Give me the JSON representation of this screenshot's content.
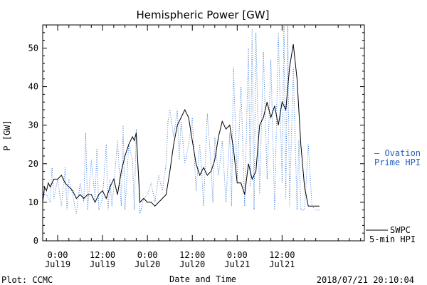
{
  "chart_data": {
    "type": "line",
    "title": "Hemispheric Power [GW]",
    "xlabel": "Date and Time",
    "ylabel": "P [GW]",
    "ylim": [
      0,
      56
    ],
    "xlim_hours": [
      -4,
      82
    ],
    "yticks": [
      0,
      10,
      20,
      30,
      40,
      50
    ],
    "xticks": [
      {
        "hour": 0,
        "time": "0:00",
        "date": "Jul19"
      },
      {
        "hour": 12,
        "time": "12:00",
        "date": "Jul19"
      },
      {
        "hour": 24,
        "time": "0:00",
        "date": "Jul20"
      },
      {
        "hour": 36,
        "time": "12:00",
        "date": "Jul20"
      },
      {
        "hour": 48,
        "time": "0:00",
        "date": "Jul21"
      },
      {
        "hour": 60,
        "time": "12:00",
        "date": "Jul21"
      }
    ],
    "series": [
      {
        "name": "SWPC 5-min HPI",
        "color": "#000000",
        "style": "solid",
        "x": [
          -4,
          -3.5,
          -3,
          -2.5,
          -2,
          -1,
          0,
          1,
          2,
          3,
          4,
          5,
          6,
          7,
          8,
          9,
          10,
          11,
          12,
          13,
          14,
          15,
          16,
          17,
          18,
          19,
          20,
          20.5,
          21,
          22,
          23,
          24,
          25,
          26,
          27,
          28,
          29,
          30,
          31,
          32,
          33,
          34,
          35,
          36,
          37,
          38,
          39,
          40,
          41,
          42,
          43,
          44,
          45,
          46,
          47,
          48,
          49,
          50,
          51,
          52,
          53,
          54,
          55,
          56,
          57,
          58,
          59,
          60,
          61,
          62,
          63,
          64,
          65,
          66,
          67,
          68,
          69,
          70
        ],
        "y": [
          10,
          14,
          13,
          15,
          14,
          16,
          16,
          17,
          15,
          14,
          13,
          11,
          12,
          11,
          12,
          12,
          10,
          12,
          13,
          11,
          14,
          16,
          12,
          18,
          22,
          25,
          27,
          26,
          28,
          10,
          11,
          10,
          10,
          9,
          10,
          11,
          12,
          18,
          25,
          30,
          32,
          34,
          32,
          26,
          20,
          17,
          19,
          17,
          18,
          21,
          27,
          31,
          29,
          30,
          24,
          15,
          15,
          12,
          20,
          16,
          18,
          30,
          32,
          36,
          32,
          35,
          30,
          36,
          34,
          45,
          51,
          42,
          25,
          14,
          9,
          9,
          9,
          9
        ]
      },
      {
        "name": "Ovation Prime HPI",
        "color": "#3b78d4",
        "style": "dotted",
        "x": [
          -4,
          -3,
          -2,
          -1.5,
          -1,
          0,
          1,
          2,
          2.5,
          3,
          4,
          5,
          6,
          7,
          7.5,
          8,
          9,
          10,
          10.5,
          11,
          12,
          13,
          13.5,
          14,
          14.5,
          15,
          16,
          17,
          17.5,
          18,
          19,
          20,
          20.5,
          21,
          22,
          23,
          24,
          25,
          26,
          27,
          28,
          29,
          29.5,
          30,
          31,
          32,
          32.5,
          33,
          34,
          35,
          36,
          37,
          38,
          38.5,
          39,
          40,
          41,
          41.5,
          42,
          43,
          44,
          45,
          46,
          46.5,
          47,
          48,
          49,
          50,
          51,
          51.5,
          52,
          52.5,
          53,
          54,
          55,
          56,
          57,
          58,
          59,
          60,
          60.5,
          61,
          61.5,
          62,
          63,
          64,
          64.5,
          65,
          66,
          67,
          68,
          69,
          70
        ],
        "y": [
          13,
          12,
          10,
          19,
          11,
          16,
          9,
          19,
          8,
          16,
          12,
          7,
          15,
          10,
          28,
          8,
          21,
          11,
          24,
          8,
          11,
          25,
          8,
          16,
          9,
          14,
          26,
          9,
          30,
          8,
          25,
          21,
          8,
          29,
          7,
          11,
          12,
          15,
          10,
          17,
          13,
          20,
          31,
          34,
          27,
          34,
          21,
          31,
          20,
          25,
          32,
          13,
          25,
          18,
          9,
          33,
          20,
          10,
          27,
          17,
          26,
          10,
          28,
          9,
          45,
          16,
          40,
          9,
          50,
          14,
          55,
          8,
          54,
          12,
          49,
          16,
          47,
          8,
          54,
          15,
          56,
          11,
          56,
          9,
          45,
          8,
          26,
          8,
          8,
          25,
          9,
          8,
          8
        ]
      }
    ],
    "annotations": {
      "legend_ovation_line1": "— Ovation",
      "legend_ovation_line2": "Prime HPI",
      "legend_swpc_line1": "SWPC",
      "legend_swpc_line2": "5-min HPI",
      "footer_left": "Plot: CCMC",
      "footer_right": "2018/07/21 20:10:04"
    }
  }
}
